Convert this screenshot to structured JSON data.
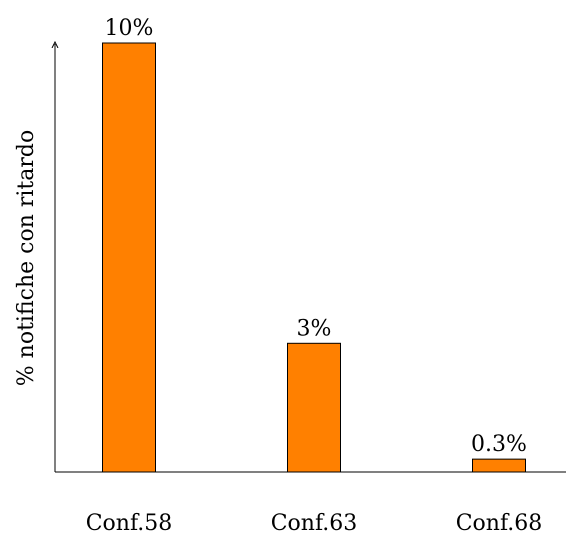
{
  "chart_data": {
    "type": "bar",
    "categories": [
      "Conf.58",
      "Conf.63",
      "Conf.68"
    ],
    "values": [
      10,
      3,
      0.3
    ],
    "data_labels": [
      "10%",
      "3%",
      "0.3%"
    ],
    "title": "",
    "xlabel": "",
    "ylabel": "% notifiche con ritardo",
    "ylim": [
      0,
      10
    ],
    "grid": false,
    "legend": "none",
    "bar_color": "#FF8000",
    "bar_edge_color": "#000000"
  }
}
